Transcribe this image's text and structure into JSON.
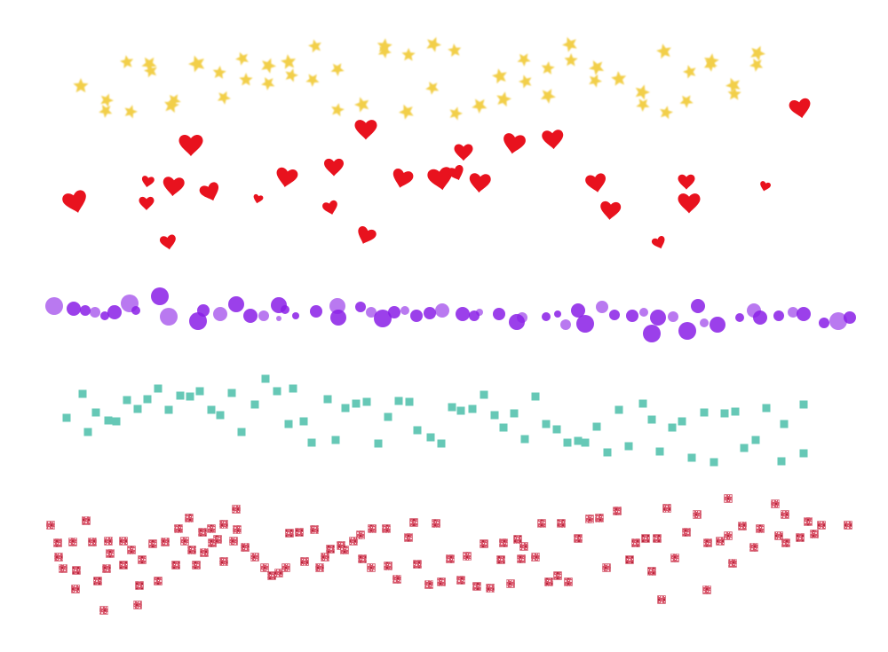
{
  "scatter_rows": [
    {
      "shape": "star-icon",
      "color": "#f2cf4a",
      "style": "soft-blur"
    },
    {
      "shape": "heart-icon",
      "color": "#e8121e",
      "style": "solid"
    },
    {
      "shape": "circle-icon",
      "color": "#8a1fe6",
      "style": "translucent"
    },
    {
      "shape": "square-icon",
      "color": "#66c8b6",
      "style": "solid"
    },
    {
      "shape": "square-icon",
      "color": "#d64a5c",
      "style": "sparkle-texture"
    }
  ]
}
